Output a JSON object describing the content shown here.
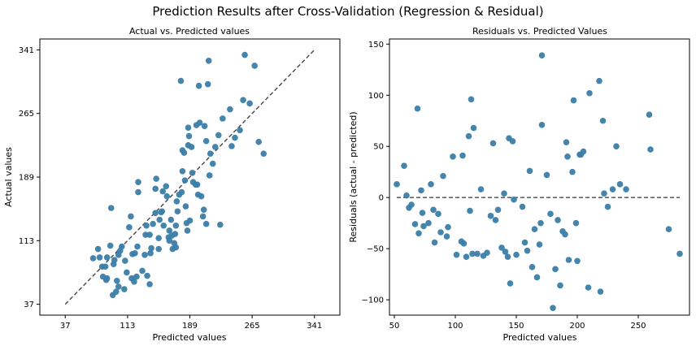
{
  "suptitle": "Prediction Results after Cross-Validation (Regression & Residual)",
  "colors": {
    "point": "#3b7ea8",
    "reference_line": "#444444"
  },
  "chart_data": [
    {
      "type": "scatter",
      "title": "Actual vs. Predicted values",
      "xlabel": "Predicted values",
      "ylabel": "Actual values",
      "xlim": [
        6,
        372
      ],
      "ylim": [
        24,
        354
      ],
      "xticks": [
        37,
        113,
        189,
        265,
        341
      ],
      "yticks": [
        37,
        113,
        189,
        265,
        341
      ],
      "xtick_labels": [
        "37",
        "113",
        "189",
        "265",
        "341"
      ],
      "ytick_labels": [
        "37",
        "113",
        "189",
        "265",
        "341"
      ],
      "reference_line": {
        "style": "dashed",
        "from": [
          37,
          37
        ],
        "to": [
          341,
          341
        ]
      },
      "grid": false,
      "points": [
        [
          71,
          92
        ],
        [
          77,
          103
        ],
        [
          79,
          93
        ],
        [
          82,
          82
        ],
        [
          83,
          70
        ],
        [
          86,
          82
        ],
        [
          87,
          66
        ],
        [
          88,
          68
        ],
        [
          88,
          93
        ],
        [
          92,
          107
        ],
        [
          93,
          152
        ],
        [
          95,
          48
        ],
        [
          96,
          85
        ],
        [
          97,
          90
        ],
        [
          99,
          52
        ],
        [
          100,
          65
        ],
        [
          102,
          58
        ],
        [
          102,
          96
        ],
        [
          104,
          101
        ],
        [
          106,
          106
        ],
        [
          109,
          55
        ],
        [
          110,
          89
        ],
        [
          112,
          75
        ],
        [
          115,
          129
        ],
        [
          117,
          142
        ],
        [
          118,
          68
        ],
        [
          119,
          97
        ],
        [
          121,
          64
        ],
        [
          122,
          98
        ],
        [
          124,
          70
        ],
        [
          125,
          106
        ],
        [
          126,
          171
        ],
        [
          126,
          183
        ],
        [
          131,
          77
        ],
        [
          134,
          96
        ],
        [
          135,
          120
        ],
        [
          136,
          131
        ],
        [
          137,
          71
        ],
        [
          140,
          61
        ],
        [
          140,
          120
        ],
        [
          141,
          98
        ],
        [
          142,
          104
        ],
        [
          144,
          133
        ],
        [
          147,
          146
        ],
        [
          147,
          175
        ],
        [
          148,
          187
        ],
        [
          151,
          103
        ],
        [
          151,
          116
        ],
        [
          152,
          138
        ],
        [
          154,
          147
        ],
        [
          155,
          148
        ],
        [
          156,
          172
        ],
        [
          157,
          131
        ],
        [
          160,
          178
        ],
        [
          161,
          166
        ],
        [
          163,
          117
        ],
        [
          164,
          113
        ],
        [
          164,
          125
        ],
        [
          166,
          138
        ],
        [
          167,
          119
        ],
        [
          168,
          103
        ],
        [
          170,
          110
        ],
        [
          171,
          121
        ],
        [
          172,
          131
        ],
        [
          172,
          105
        ],
        [
          173,
          160
        ],
        [
          174,
          148
        ],
        [
          176,
          168
        ],
        [
          178,
          304
        ],
        [
          179,
          171
        ],
        [
          180,
          221
        ],
        [
          180,
          196
        ],
        [
          182,
          218
        ],
        [
          183,
          185
        ],
        [
          184,
          154
        ],
        [
          185,
          134
        ],
        [
          186,
          125
        ],
        [
          187,
          227
        ],
        [
          187,
          248
        ],
        [
          188,
          238
        ],
        [
          189,
          137
        ],
        [
          191,
          225
        ],
        [
          192,
          194
        ],
        [
          193,
          183
        ],
        [
          196,
          180
        ],
        [
          197,
          251
        ],
        [
          198,
          180
        ],
        [
          199,
          168
        ],
        [
          200,
          298
        ],
        [
          201,
          254
        ],
        [
          203,
          166
        ],
        [
          205,
          142
        ],
        [
          206,
          150
        ],
        [
          207,
          250
        ],
        [
          209,
          133
        ],
        [
          209,
          232
        ],
        [
          211,
          300
        ],
        [
          212,
          328
        ],
        [
          213,
          191
        ],
        [
          214,
          217
        ],
        [
          217,
          205
        ],
        [
          220,
          225
        ],
        [
          224,
          239
        ],
        [
          226,
          132
        ],
        [
          229,
          259
        ],
        [
          238,
          270
        ],
        [
          240,
          226
        ],
        [
          244,
          236
        ],
        [
          250,
          245
        ],
        [
          254,
          281
        ],
        [
          256,
          335
        ],
        [
          262,
          277
        ],
        [
          268,
          322
        ],
        [
          273,
          231
        ],
        [
          279,
          217
        ]
      ]
    },
    {
      "type": "scatter",
      "title": "Residuals vs. Predicted Values",
      "xlabel": "Predicted values",
      "ylabel": "Residuals (actual - predicted)",
      "xlim": [
        46,
        292
      ],
      "ylim": [
        -115,
        155
      ],
      "xticks": [
        50,
        100,
        150,
        200,
        250
      ],
      "yticks": [
        -100,
        -50,
        0,
        50,
        100,
        150
      ],
      "xtick_labels": [
        "50",
        "100",
        "150",
        "200",
        "250"
      ],
      "ytick_labels": [
        "−100",
        "−50",
        "0",
        "50",
        "100",
        "150"
      ],
      "reference_line": {
        "style": "dashed",
        "from": [
          52,
          0
        ],
        "to": [
          284,
          0
        ]
      },
      "grid": false,
      "points": [
        [
          52,
          13
        ],
        [
          58,
          31
        ],
        [
          60,
          2
        ],
        [
          62,
          -10
        ],
        [
          64,
          -7
        ],
        [
          67,
          -26
        ],
        [
          69,
          87
        ],
        [
          70,
          -35
        ],
        [
          72,
          7
        ],
        [
          73,
          -15
        ],
        [
          74,
          -28
        ],
        [
          78,
          -25
        ],
        [
          80,
          13
        ],
        [
          82,
          -12
        ],
        [
          83,
          -44
        ],
        [
          86,
          -16
        ],
        [
          88,
          -34
        ],
        [
          90,
          21
        ],
        [
          93,
          -38
        ],
        [
          94,
          -29
        ],
        [
          98,
          40
        ],
        [
          101,
          -56
        ],
        [
          105,
          -43
        ],
        [
          106,
          41
        ],
        [
          107,
          -45
        ],
        [
          109,
          -58
        ],
        [
          111,
          60
        ],
        [
          112,
          -13
        ],
        [
          113,
          96
        ],
        [
          114,
          -55
        ],
        [
          115,
          68
        ],
        [
          118,
          -55
        ],
        [
          121,
          8
        ],
        [
          123,
          -57
        ],
        [
          126,
          -54
        ],
        [
          129,
          -18
        ],
        [
          131,
          53
        ],
        [
          133,
          -22
        ],
        [
          135,
          -12
        ],
        [
          138,
          -49
        ],
        [
          140,
          4
        ],
        [
          141,
          -53
        ],
        [
          143,
          -58
        ],
        [
          144,
          58
        ],
        [
          145,
          -84
        ],
        [
          147,
          55
        ],
        [
          148,
          -2
        ],
        [
          150,
          -56
        ],
        [
          155,
          -9
        ],
        [
          157,
          -44
        ],
        [
          159,
          -52
        ],
        [
          161,
          26
        ],
        [
          163,
          -68
        ],
        [
          165,
          -31
        ],
        [
          167,
          -78
        ],
        [
          169,
          -46
        ],
        [
          170,
          -25
        ],
        [
          171,
          71
        ],
        [
          171,
          139
        ],
        [
          175,
          22
        ],
        [
          178,
          -16
        ],
        [
          180,
          -108
        ],
        [
          182,
          -70
        ],
        [
          184,
          -22
        ],
        [
          186,
          -86
        ],
        [
          188,
          -33
        ],
        [
          190,
          -36
        ],
        [
          191,
          54
        ],
        [
          192,
          40
        ],
        [
          193,
          -61
        ],
        [
          196,
          25
        ],
        [
          197,
          95
        ],
        [
          199,
          -25
        ],
        [
          200,
          -62
        ],
        [
          202,
          42
        ],
        [
          203,
          42
        ],
        [
          205,
          45
        ],
        [
          209,
          -88
        ],
        [
          210,
          102
        ],
        [
          218,
          114
        ],
        [
          219,
          -92
        ],
        [
          221,
          75
        ],
        [
          222,
          4
        ],
        [
          225,
          -9
        ],
        [
          229,
          8
        ],
        [
          232,
          50
        ],
        [
          235,
          13
        ],
        [
          240,
          8
        ],
        [
          259,
          81
        ],
        [
          260,
          47
        ],
        [
          275,
          -31
        ],
        [
          284,
          -55
        ]
      ]
    }
  ]
}
